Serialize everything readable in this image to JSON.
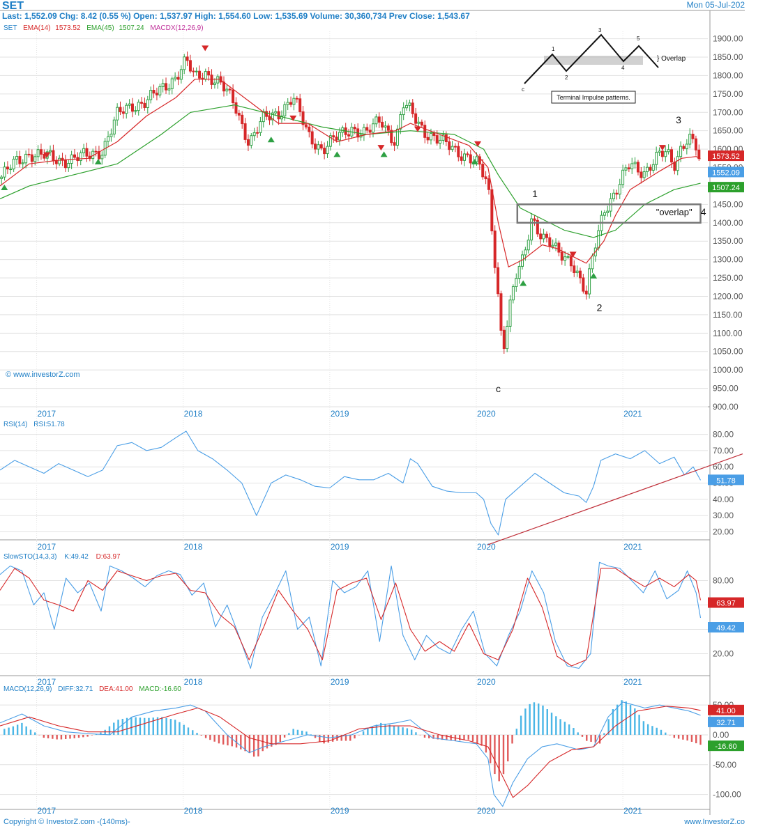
{
  "header": {
    "symbol": "SET",
    "date": "Mon 05-Jul-202",
    "quote_line": "Last: 1,552.09  Chg: 8.42 (0.55 %)  Open: 1,537.97  High: 1,554.60  Low: 1,535.69  Volume: 30,360,734  Prev Close: 1,543.67"
  },
  "watermark": "© www.investorZ.com",
  "footer": {
    "left": "Copyright © InvestorZ.com  -(140ms)-",
    "right": "www.InvestorZ.co"
  },
  "colors": {
    "up": "#2ea043",
    "down": "#d62728",
    "ema14": "#d62728",
    "ema45": "#2ca02c",
    "rsi": "#4a9ee6",
    "stoch_k": "#4a9ee6",
    "stoch_d": "#d62728",
    "hist_pos": "#4ab6e6",
    "hist_neg": "#e05a5a",
    "accent": "#1f7fc6"
  },
  "chart_data": [
    {
      "type": "candlestick",
      "legend": {
        "symbol": "SET",
        "ema14": "EMA(14)",
        "ema14_val": "1573.52",
        "ema45": "EMA(45)",
        "ema45_val": "1507.24",
        "macdx": "MACDX(12,26,9)"
      },
      "yticks": [
        "1900.00",
        "1850.00",
        "1800.00",
        "1750.00",
        "1700.00",
        "1650.00",
        "1600.00",
        "1550.00",
        "1500.00",
        "1450.00",
        "1400.00",
        "1350.00",
        "1300.00",
        "1250.00",
        "1200.00",
        "1150.00",
        "1100.00",
        "1050.00",
        "1000.00",
        "950.00",
        "900.00"
      ],
      "ylim": [
        900,
        1920
      ],
      "xlim": [
        2016.75,
        2021.58
      ],
      "years": [
        "2017",
        "2018",
        "2019",
        "2020",
        "2021"
      ],
      "year_positions": [
        2017,
        2018,
        2019,
        2020,
        2021
      ],
      "price_tags": [
        {
          "label": "1573.52",
          "value": 1573.52,
          "color": "#d62728"
        },
        {
          "label": "1552.09",
          "value": 1552.09,
          "color": "#4a9ee6"
        },
        {
          "label": "1507.24",
          "value": 1507.24,
          "color": "#2ca02c"
        }
      ],
      "close": {
        "x": [
          2016.75,
          2016.85,
          2016.95,
          2017.05,
          2017.15,
          2017.25,
          2017.35,
          2017.45,
          2017.55,
          2017.65,
          2017.75,
          2017.85,
          2017.95,
          2018.02,
          2018.08,
          2018.15,
          2018.25,
          2018.35,
          2018.45,
          2018.55,
          2018.65,
          2018.75,
          2018.85,
          2018.95,
          2019.05,
          2019.15,
          2019.25,
          2019.35,
          2019.45,
          2019.5,
          2019.55,
          2019.65,
          2019.75,
          2019.85,
          2019.95,
          2020.02,
          2020.08,
          2020.12,
          2020.15,
          2020.18,
          2020.22,
          2020.27,
          2020.32,
          2020.38,
          2020.45,
          2020.55,
          2020.65,
          2020.7,
          2020.75,
          2020.8,
          2020.87,
          2020.95,
          2021.05,
          2021.15,
          2021.25,
          2021.3,
          2021.35,
          2021.4,
          2021.45,
          2021.5,
          2021.53
        ],
        "y": [
          1520,
          1560,
          1590,
          1580,
          1570,
          1575,
          1580,
          1600,
          1690,
          1720,
          1730,
          1760,
          1800,
          1840,
          1790,
          1810,
          1780,
          1720,
          1620,
          1680,
          1700,
          1740,
          1640,
          1600,
          1630,
          1660,
          1640,
          1680,
          1620,
          1720,
          1700,
          1650,
          1620,
          1600,
          1580,
          1550,
          1500,
          1330,
          1200,
          1050,
          1150,
          1250,
          1300,
          1420,
          1360,
          1320,
          1300,
          1250,
          1200,
          1320,
          1440,
          1480,
          1560,
          1540,
          1580,
          1590,
          1560,
          1610,
          1630,
          1600,
          1552
        ]
      },
      "ema14": {
        "x": [
          2016.75,
          2016.95,
          2017.15,
          2017.35,
          2017.55,
          2017.75,
          2017.95,
          2018.08,
          2018.25,
          2018.45,
          2018.65,
          2018.85,
          2019.05,
          2019.25,
          2019.45,
          2019.55,
          2019.75,
          2019.95,
          2020.08,
          2020.15,
          2020.22,
          2020.32,
          2020.45,
          2020.55,
          2020.65,
          2020.75,
          2020.87,
          2020.95,
          2021.05,
          2021.25,
          2021.4,
          2021.5,
          2021.53
        ],
        "y": [
          1500,
          1560,
          1570,
          1575,
          1620,
          1690,
          1740,
          1790,
          1790,
          1730,
          1670,
          1670,
          1620,
          1640,
          1650,
          1670,
          1640,
          1610,
          1550,
          1400,
          1280,
          1300,
          1340,
          1330,
          1310,
          1290,
          1350,
          1420,
          1490,
          1540,
          1575,
          1580,
          1573.52
        ]
      },
      "ema45": {
        "x": [
          2016.75,
          2016.95,
          2017.25,
          2017.55,
          2017.85,
          2018.05,
          2018.35,
          2018.65,
          2018.95,
          2019.25,
          2019.55,
          2019.85,
          2020.05,
          2020.15,
          2020.3,
          2020.45,
          2020.6,
          2020.8,
          2020.95,
          2021.15,
          2021.35,
          2021.53
        ],
        "y": [
          1465,
          1500,
          1530,
          1560,
          1640,
          1700,
          1720,
          1690,
          1660,
          1640,
          1650,
          1640,
          1600,
          1530,
          1440,
          1410,
          1380,
          1360,
          1380,
          1450,
          1490,
          1507.24
        ]
      },
      "down_markers": [
        {
          "x": 2017.07,
          "y": 1580
        },
        {
          "x": 2018.15,
          "y": 1870
        },
        {
          "x": 2018.75,
          "y": 1680
        },
        {
          "x": 2019.35,
          "y": 1600
        },
        {
          "x": 2019.6,
          "y": 1650
        },
        {
          "x": 2020.01,
          "y": 1610
        },
        {
          "x": 2020.66,
          "y": 1310
        },
        {
          "x": 2021.27,
          "y": 1600
        }
      ],
      "up_markers": [
        {
          "x": 2016.78,
          "y": 1500
        },
        {
          "x": 2017.42,
          "y": 1570
        },
        {
          "x": 2018.6,
          "y": 1630
        },
        {
          "x": 2019.05,
          "y": 1590
        },
        {
          "x": 2019.37,
          "y": 1590
        },
        {
          "x": 2019.99,
          "y": 1570
        },
        {
          "x": 2020.32,
          "y": 1240
        },
        {
          "x": 2020.8,
          "y": 1260
        }
      ],
      "annotations": [
        {
          "text": "1",
          "x": 2020.4,
          "y": 1470
        },
        {
          "text": "2",
          "x": 2020.84,
          "y": 1160
        },
        {
          "text": "3",
          "x": 2021.38,
          "y": 1670
        },
        {
          "text": "4",
          "x": 2021.55,
          "y": 1420
        },
        {
          "text": "\"overlap\"",
          "x": 2021.35,
          "y": 1420
        },
        {
          "text": "c",
          "x": 2020.15,
          "y": 940
        }
      ],
      "overlap_box": {
        "x0": 2020.28,
        "x1": 2021.53,
        "y0": 1400,
        "y1": 1450
      },
      "inset": {
        "title": "Terminal Impulse patterns.",
        "overlap_label": "} Overlap",
        "labels": [
          "c",
          "1",
          "2",
          "3",
          "4",
          "5"
        ]
      }
    },
    {
      "type": "line",
      "legend": "RSI(14)",
      "legend_val": "RSI:51.78",
      "yticks": [
        "80.00",
        "70.00",
        "60.00",
        "50.00",
        "40.00",
        "30.00",
        "20.00"
      ],
      "ylim": [
        15,
        85
      ],
      "tag": "51.78",
      "series": {
        "x": [
          2016.75,
          2016.85,
          2016.95,
          2017.05,
          2017.15,
          2017.25,
          2017.35,
          2017.45,
          2017.55,
          2017.65,
          2017.75,
          2017.85,
          2017.95,
          2018.02,
          2018.1,
          2018.2,
          2018.3,
          2018.4,
          2018.5,
          2018.6,
          2018.7,
          2018.8,
          2018.9,
          2019.0,
          2019.1,
          2019.2,
          2019.3,
          2019.4,
          2019.5,
          2019.55,
          2019.6,
          2019.7,
          2019.8,
          2019.9,
          2020.0,
          2020.05,
          2020.1,
          2020.15,
          2020.2,
          2020.3,
          2020.4,
          2020.5,
          2020.6,
          2020.7,
          2020.75,
          2020.8,
          2020.85,
          2020.95,
          2021.05,
          2021.15,
          2021.25,
          2021.35,
          2021.42,
          2021.48,
          2021.53
        ],
        "y": [
          58,
          64,
          60,
          56,
          62,
          58,
          54,
          58,
          73,
          75,
          70,
          72,
          78,
          82,
          70,
          65,
          58,
          50,
          30,
          50,
          55,
          52,
          48,
          47,
          54,
          52,
          52,
          56,
          50,
          65,
          62,
          48,
          45,
          44,
          44,
          40,
          25,
          18,
          40,
          48,
          56,
          50,
          44,
          42,
          38,
          48,
          64,
          68,
          65,
          70,
          62,
          66,
          55,
          60,
          51.78
        ]
      },
      "trendline": {
        "x0": 2020.08,
        "y0": 12,
        "x1": 2021.58,
        "y1": 68
      }
    },
    {
      "type": "line",
      "legend": "SlowSTO(14,3,3)",
      "legend_k": "K:49.42",
      "legend_d": "D:63.97",
      "yticks": [
        "80.00",
        "60.00",
        "40.00",
        "20.00"
      ],
      "ylim": [
        2,
        98
      ],
      "tags": [
        {
          "label": "63.97",
          "color": "#d62728"
        },
        {
          "label": "49.42",
          "color": "#4a9ee6"
        }
      ],
      "k": {
        "x": [
          2016.75,
          2016.82,
          2016.9,
          2016.98,
          2017.05,
          2017.12,
          2017.2,
          2017.28,
          2017.36,
          2017.44,
          2017.5,
          2017.58,
          2017.66,
          2017.74,
          2017.82,
          2017.9,
          2017.98,
          2018.06,
          2018.14,
          2018.22,
          2018.3,
          2018.38,
          2018.46,
          2018.54,
          2018.62,
          2018.7,
          2018.78,
          2018.86,
          2018.94,
          2019.02,
          2019.1,
          2019.18,
          2019.26,
          2019.34,
          2019.42,
          2019.5,
          2019.58,
          2019.66,
          2019.74,
          2019.82,
          2019.9,
          2019.98,
          2020.06,
          2020.14,
          2020.22,
          2020.3,
          2020.38,
          2020.46,
          2020.54,
          2020.62,
          2020.7,
          2020.78,
          2020.84,
          2020.9,
          2020.98,
          2021.06,
          2021.14,
          2021.22,
          2021.3,
          2021.38,
          2021.44,
          2021.5,
          2021.53
        ],
        "y": [
          85,
          92,
          88,
          60,
          70,
          40,
          82,
          70,
          78,
          55,
          92,
          88,
          82,
          75,
          84,
          88,
          85,
          68,
          78,
          42,
          60,
          35,
          8,
          50,
          68,
          88,
          40,
          50,
          10,
          80,
          70,
          75,
          88,
          30,
          92,
          35,
          15,
          35,
          25,
          20,
          40,
          55,
          20,
          10,
          35,
          55,
          88,
          70,
          30,
          10,
          8,
          20,
          95,
          92,
          90,
          80,
          70,
          88,
          65,
          72,
          88,
          70,
          49.42
        ]
      },
      "d": {
        "x": [
          2016.75,
          2016.85,
          2016.95,
          2017.05,
          2017.15,
          2017.25,
          2017.35,
          2017.45,
          2017.55,
          2017.65,
          2017.75,
          2017.85,
          2017.95,
          2018.05,
          2018.15,
          2018.25,
          2018.35,
          2018.45,
          2018.55,
          2018.65,
          2018.75,
          2018.85,
          2018.95,
          2019.05,
          2019.15,
          2019.25,
          2019.35,
          2019.45,
          2019.55,
          2019.65,
          2019.75,
          2019.85,
          2019.95,
          2020.05,
          2020.15,
          2020.25,
          2020.35,
          2020.45,
          2020.55,
          2020.65,
          2020.75,
          2020.85,
          2020.95,
          2021.05,
          2021.15,
          2021.25,
          2021.35,
          2021.45,
          2021.5,
          2021.53
        ],
        "y": [
          72,
          90,
          82,
          64,
          60,
          55,
          80,
          72,
          88,
          84,
          80,
          84,
          86,
          72,
          70,
          52,
          42,
          15,
          42,
          72,
          55,
          40,
          15,
          72,
          78,
          82,
          48,
          78,
          40,
          22,
          30,
          22,
          45,
          20,
          15,
          40,
          82,
          58,
          18,
          10,
          15,
          90,
          90,
          82,
          75,
          82,
          75,
          85,
          80,
          63.97
        ]
      }
    },
    {
      "type": "bar",
      "legend": "MACD(12,26,9)",
      "legend_diff": "DIFF:32.71",
      "legend_dea": "DEA:41.00",
      "legend_macd": "MACD:-16.60",
      "yticks": [
        "50.00",
        "0.00",
        "-50.00",
        "-100.00"
      ],
      "ylim": [
        -125,
        70
      ],
      "tags": [
        {
          "label": "41.00",
          "color": "#d62728",
          "value": 41
        },
        {
          "label": "32.71",
          "color": "#4a9ee6",
          "value": 32.71
        },
        {
          "label": "-16.60",
          "color": "#2ca02c",
          "value": -16.6
        }
      ],
      "diff": {
        "x": [
          2016.75,
          2016.9,
          2017.05,
          2017.2,
          2017.35,
          2017.5,
          2017.65,
          2017.8,
          2017.95,
          2018.05,
          2018.15,
          2018.3,
          2018.45,
          2018.55,
          2018.7,
          2018.85,
          2019.0,
          2019.15,
          2019.3,
          2019.45,
          2019.55,
          2019.7,
          2019.85,
          2020.0,
          2020.08,
          2020.12,
          2020.18,
          2020.25,
          2020.35,
          2020.45,
          2020.55,
          2020.7,
          2020.8,
          2020.9,
          2021.0,
          2021.15,
          2021.25,
          2021.35,
          2021.45,
          2021.53
        ],
        "y": [
          20,
          35,
          15,
          5,
          2,
          0,
          30,
          40,
          45,
          50,
          40,
          0,
          -30,
          -20,
          -10,
          0,
          -5,
          0,
          15,
          20,
          25,
          -5,
          -10,
          -15,
          -40,
          -100,
          -120,
          -80,
          -40,
          -20,
          -15,
          -25,
          -20,
          30,
          55,
          45,
          50,
          45,
          40,
          32.71
        ]
      },
      "dea": {
        "x": [
          2016.75,
          2016.95,
          2017.15,
          2017.35,
          2017.55,
          2017.75,
          2017.95,
          2018.1,
          2018.25,
          2018.45,
          2018.6,
          2018.8,
          2019.0,
          2019.2,
          2019.4,
          2019.55,
          2019.75,
          2019.95,
          2020.08,
          2020.18,
          2020.25,
          2020.35,
          2020.5,
          2020.65,
          2020.8,
          2020.95,
          2021.1,
          2021.3,
          2021.45,
          2021.53
        ],
        "y": [
          15,
          30,
          15,
          5,
          5,
          20,
          35,
          45,
          30,
          -5,
          -15,
          -15,
          -10,
          10,
          15,
          15,
          0,
          -10,
          -20,
          -70,
          -105,
          -85,
          -45,
          -25,
          -20,
          15,
          40,
          48,
          45,
          41
        ]
      },
      "macd_hist": {
        "x": [
          2016.78,
          2016.85,
          2016.9,
          2016.95,
          2017.05,
          2017.15,
          2017.25,
          2017.35,
          2017.45,
          2017.55,
          2017.65,
          2017.75,
          2017.85,
          2017.95,
          2018.05,
          2018.15,
          2018.25,
          2018.35,
          2018.45,
          2018.5,
          2018.55,
          2018.65,
          2018.75,
          2018.85,
          2018.95,
          2019.05,
          2019.15,
          2019.25,
          2019.35,
          2019.45,
          2019.55,
          2019.65,
          2019.75,
          2019.85,
          2019.95,
          2020.05,
          2020.1,
          2020.15,
          2020.2,
          2020.25,
          2020.3,
          2020.35,
          2020.4,
          2020.45,
          2020.55,
          2020.65,
          2020.75,
          2020.85,
          2020.92,
          2021.0,
          2021.08,
          2021.15,
          2021.25,
          2021.35,
          2021.45,
          2021.53
        ],
        "y": [
          10,
          15,
          20,
          10,
          -5,
          -8,
          -6,
          -3,
          5,
          25,
          30,
          28,
          30,
          25,
          10,
          -5,
          -15,
          -20,
          -30,
          -40,
          -25,
          -15,
          10,
          5,
          -15,
          -10,
          -10,
          10,
          20,
          15,
          10,
          -5,
          -8,
          -10,
          -8,
          -20,
          -50,
          -80,
          -60,
          -10,
          30,
          50,
          55,
          50,
          30,
          15,
          -10,
          -15,
          40,
          60,
          45,
          20,
          10,
          -5,
          -10,
          -16.6
        ]
      }
    }
  ]
}
